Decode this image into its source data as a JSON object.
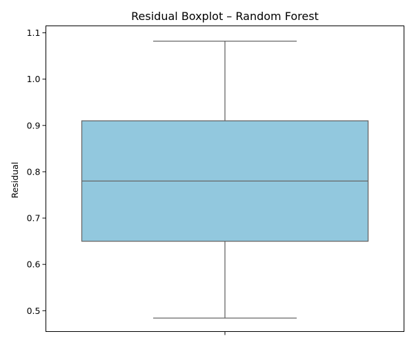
{
  "chart_data": {
    "type": "box",
    "title": "Residual Boxplot – Random Forest",
    "xlabel": "",
    "ylabel": "Residual",
    "ylim": [
      0.455,
      1.115
    ],
    "yticks": [
      {
        "value": 0.5,
        "label": "0.5"
      },
      {
        "value": 0.6,
        "label": "0.6"
      },
      {
        "value": 0.7,
        "label": "0.7"
      },
      {
        "value": 0.8,
        "label": "0.8"
      },
      {
        "value": 0.9,
        "label": "0.9"
      },
      {
        "value": 1.0,
        "label": "1.0"
      },
      {
        "value": 1.1,
        "label": "1.1"
      }
    ],
    "grid": false,
    "box": {
      "whisker_low": 0.484,
      "q1": 0.65,
      "median": 0.78,
      "q3": 0.91,
      "whisker_high": 1.082
    },
    "colors": {
      "box_fill": "#92c8de",
      "line": "#666666"
    }
  }
}
